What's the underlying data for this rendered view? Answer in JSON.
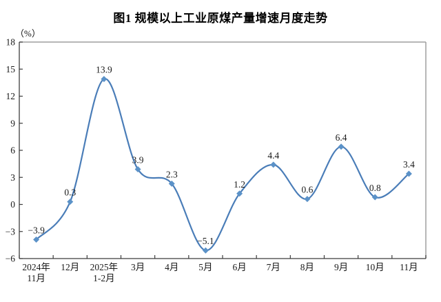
{
  "page": {
    "title": "图1 规模以上工业原煤产量增速月度走势",
    "unit_label": "（%）"
  },
  "chart_data": {
    "type": "line",
    "title": "图1 规模以上工业原煤产量增速月度走势",
    "ylabel": "（%）",
    "xlabel": "",
    "categories": [
      "2024年\n11月",
      "12月",
      "2025年\n1-2月",
      "3月",
      "4月",
      "5月",
      "6月",
      "7月",
      "8月",
      "9月",
      "10月",
      "11月"
    ],
    "values": [
      -3.9,
      0.3,
      13.9,
      3.9,
      2.3,
      -5.1,
      1.2,
      4.4,
      0.6,
      6.4,
      0.8,
      3.4
    ],
    "ylim": [
      -6,
      18
    ],
    "yticks": [
      18,
      15,
      12,
      9,
      6,
      3,
      0,
      -3,
      -6
    ],
    "grid": false,
    "legend": "none",
    "smooth": true,
    "marker": "diamond",
    "line_color": "#4a7db8",
    "marker_color": "#5b92c8",
    "axis_color": "#3c3c3c",
    "border_color": "#9e9e9e",
    "text_color": "#1a1a1a"
  }
}
